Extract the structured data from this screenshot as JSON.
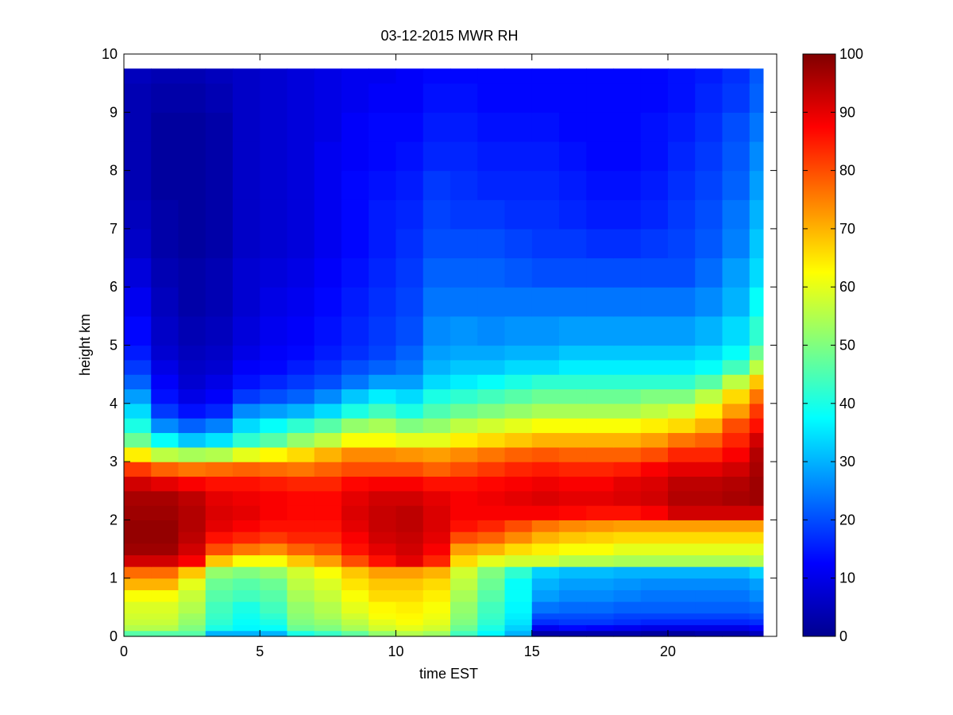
{
  "chart_data": {
    "type": "heatmap",
    "title": "03-12-2015 MWR RH",
    "xlabel": "time EST",
    "ylabel": "height km",
    "xlim": [
      0,
      24
    ],
    "ylim": [
      0,
      10
    ],
    "x_ticks": [
      0,
      5,
      10,
      15,
      20
    ],
    "y_ticks": [
      0,
      1,
      2,
      3,
      4,
      5,
      6,
      7,
      8,
      9,
      10
    ],
    "x_tick_labels": [
      "0",
      "5",
      "10",
      "15",
      "20"
    ],
    "y_tick_labels": [
      "0",
      "1",
      "2",
      "3",
      "4",
      "5",
      "6",
      "7",
      "8",
      "9",
      "10"
    ],
    "colorbar": {
      "colormap": "jet",
      "range": [
        0,
        100
      ],
      "ticks": [
        0,
        10,
        20,
        30,
        40,
        50,
        60,
        70,
        80,
        90,
        100
      ],
      "tick_labels": [
        "0",
        "10",
        "20",
        "30",
        "40",
        "50",
        "60",
        "70",
        "80",
        "90",
        "100"
      ]
    },
    "x": [
      0,
      1,
      2,
      3,
      4,
      5,
      6,
      7,
      8,
      9,
      10,
      11,
      12,
      13,
      14,
      15,
      16,
      17,
      18,
      19,
      20,
      21,
      22,
      23
    ],
    "y": [
      0,
      0.1,
      0.2,
      0.3,
      0.4,
      0.6,
      0.8,
      1.0,
      1.2,
      1.4,
      1.6,
      1.8,
      2.0,
      2.25,
      2.5,
      2.75,
      3.0,
      3.25,
      3.5,
      3.75,
      4.0,
      4.25,
      4.5,
      4.75,
      5.0,
      5.5,
      6.0,
      6.5,
      7.0,
      7.5,
      8.0,
      8.5,
      9.0,
      9.5,
      9.75
    ],
    "z": [
      [
        46,
        46,
        46,
        30,
        30,
        30,
        40,
        43,
        47,
        52,
        55,
        53,
        44,
        37,
        30,
        4,
        4,
        4,
        4,
        3,
        3,
        4,
        4,
        6
      ],
      [
        55,
        55,
        50,
        40,
        37,
        38,
        48,
        50,
        54,
        58,
        60,
        58,
        48,
        40,
        33,
        11,
        13,
        12,
        11,
        10,
        10,
        10,
        10,
        12
      ],
      [
        57,
        57,
        52,
        42,
        38,
        40,
        50,
        52,
        56,
        60,
        62,
        60,
        50,
        42,
        35,
        17,
        18,
        18,
        17,
        16,
        16,
        16,
        16,
        17
      ],
      [
        58,
        58,
        53,
        43,
        39,
        42,
        51,
        54,
        58,
        62,
        63,
        61,
        51,
        43,
        36,
        20,
        20,
        20,
        19,
        19,
        19,
        19,
        19,
        20
      ],
      [
        59,
        59,
        55,
        44,
        40,
        44,
        52,
        55,
        60,
        63,
        64,
        62,
        52,
        44,
        37,
        24,
        23,
        23,
        22,
        22,
        22,
        22,
        22,
        23
      ],
      [
        62,
        62,
        57,
        46,
        44,
        46,
        54,
        57,
        62,
        66,
        66,
        64,
        54,
        46,
        38,
        28,
        26,
        26,
        25,
        24,
        24,
        24,
        24,
        26
      ],
      [
        70,
        70,
        60,
        48,
        46,
        48,
        56,
        59,
        65,
        68,
        68,
        66,
        56,
        48,
        38,
        30,
        28,
        28,
        27,
        26,
        26,
        26,
        26,
        28
      ],
      [
        77,
        77,
        68,
        52,
        50,
        52,
        58,
        62,
        68,
        72,
        72,
        70,
        58,
        50,
        42,
        33,
        31,
        31,
        30,
        30,
        30,
        30,
        30,
        33
      ],
      [
        92,
        92,
        88,
        68,
        62,
        62,
        68,
        72,
        80,
        86,
        90,
        84,
        66,
        60,
        58,
        58,
        55,
        55,
        54,
        54,
        54,
        54,
        54,
        55
      ],
      [
        97,
        97,
        92,
        80,
        76,
        74,
        78,
        80,
        86,
        90,
        92,
        88,
        72,
        70,
        66,
        64,
        62,
        62,
        60,
        60,
        60,
        60,
        60,
        60
      ],
      [
        98,
        98,
        94,
        86,
        84,
        82,
        84,
        84,
        88,
        92,
        93,
        90,
        80,
        78,
        74,
        70,
        68,
        67,
        66,
        66,
        66,
        66,
        66,
        66
      ],
      [
        98,
        98,
        95,
        90,
        88,
        86,
        86,
        86,
        90,
        93,
        94,
        91,
        86,
        84,
        80,
        76,
        74,
        73,
        72,
        72,
        72,
        72,
        72,
        72
      ],
      [
        97,
        97,
        95,
        91,
        90,
        88,
        87,
        87,
        91,
        93,
        94,
        91,
        88,
        88,
        88,
        88,
        87,
        86,
        86,
        88,
        92,
        92,
        92,
        92
      ],
      [
        96,
        96,
        94,
        90,
        89,
        88,
        87,
        87,
        90,
        92,
        92,
        90,
        88,
        89,
        90,
        91,
        90,
        90,
        91,
        92,
        95,
        95,
        96,
        97
      ],
      [
        92,
        90,
        88,
        86,
        86,
        85,
        84,
        84,
        87,
        88,
        88,
        86,
        86,
        87,
        88,
        89,
        88,
        88,
        90,
        91,
        94,
        94,
        95,
        97
      ],
      [
        82,
        78,
        76,
        77,
        78,
        77,
        76,
        78,
        80,
        80,
        80,
        78,
        80,
        82,
        84,
        85,
        84,
        84,
        85,
        88,
        90,
        90,
        92,
        96
      ],
      [
        64,
        56,
        54,
        55,
        60,
        63,
        66,
        70,
        74,
        74,
        73,
        72,
        74,
        76,
        78,
        79,
        78,
        78,
        78,
        80,
        84,
        84,
        88,
        95
      ],
      [
        48,
        38,
        32,
        35,
        42,
        46,
        52,
        56,
        62,
        62,
        60,
        60,
        64,
        66,
        68,
        70,
        70,
        70,
        70,
        72,
        76,
        78,
        84,
        92
      ],
      [
        40,
        26,
        22,
        25,
        34,
        38,
        42,
        46,
        52,
        54,
        50,
        52,
        56,
        58,
        60,
        62,
        62,
        62,
        62,
        64,
        66,
        70,
        80,
        86
      ],
      [
        34,
        18,
        14,
        16,
        26,
        28,
        30,
        34,
        40,
        44,
        40,
        45,
        48,
        50,
        52,
        54,
        54,
        54,
        54,
        56,
        58,
        64,
        72,
        82
      ],
      [
        28,
        14,
        10,
        12,
        18,
        20,
        22,
        26,
        32,
        36,
        34,
        40,
        42,
        44,
        46,
        48,
        48,
        48,
        48,
        50,
        50,
        56,
        66,
        76
      ],
      [
        22,
        12,
        8,
        10,
        14,
        16,
        18,
        20,
        24,
        28,
        28,
        34,
        36,
        38,
        40,
        42,
        42,
        42,
        42,
        42,
        42,
        46,
        56,
        68
      ],
      [
        18,
        10,
        7,
        8,
        12,
        13,
        15,
        17,
        20,
        22,
        24,
        30,
        32,
        32,
        34,
        34,
        36,
        36,
        36,
        36,
        36,
        38,
        44,
        56
      ],
      [
        15,
        8,
        6,
        7,
        10,
        12,
        13,
        15,
        17,
        19,
        22,
        28,
        29,
        29,
        30,
        30,
        32,
        32,
        32,
        32,
        32,
        34,
        38,
        48
      ],
      [
        13,
        7,
        5,
        6,
        9,
        11,
        12,
        14,
        16,
        18,
        20,
        26,
        27,
        26,
        27,
        27,
        28,
        28,
        28,
        28,
        28,
        30,
        34,
        42
      ],
      [
        11,
        6,
        4,
        5,
        8,
        10,
        11,
        13,
        15,
        17,
        19,
        24,
        24,
        24,
        24,
        24,
        24,
        24,
        24,
        24,
        24,
        26,
        30,
        38
      ],
      [
        9,
        5,
        4,
        5,
        8,
        9,
        10,
        12,
        14,
        16,
        18,
        22,
        22,
        22,
        21,
        20,
        20,
        20,
        20,
        20,
        20,
        23,
        28,
        34
      ],
      [
        7,
        4,
        3,
        4,
        7,
        8,
        9,
        11,
        13,
        15,
        17,
        20,
        20,
        20,
        19,
        18,
        18,
        17,
        17,
        18,
        19,
        21,
        25,
        32
      ],
      [
        6,
        4,
        3,
        4,
        7,
        8,
        9,
        11,
        13,
        15,
        16,
        19,
        18,
        18,
        17,
        17,
        16,
        15,
        15,
        16,
        18,
        20,
        24,
        30
      ],
      [
        5,
        3,
        3,
        4,
        7,
        8,
        9,
        11,
        13,
        14,
        15,
        18,
        17,
        16,
        16,
        16,
        15,
        14,
        14,
        15,
        17,
        19,
        22,
        28
      ],
      [
        5,
        3,
        3,
        4,
        7,
        8,
        9,
        11,
        12,
        13,
        14,
        16,
        16,
        15,
        15,
        15,
        14,
        13,
        13,
        14,
        16,
        18,
        21,
        26
      ],
      [
        5,
        3,
        3,
        4,
        7,
        8,
        9,
        10,
        12,
        13,
        13,
        15,
        15,
        14,
        14,
        14,
        13,
        13,
        13,
        14,
        15,
        17,
        20,
        24
      ],
      [
        5,
        4,
        4,
        5,
        7,
        8,
        9,
        10,
        11,
        12,
        12,
        14,
        14,
        13,
        13,
        13,
        13,
        13,
        13,
        13,
        14,
        16,
        18,
        22
      ],
      [
        6,
        5,
        5,
        6,
        7,
        8,
        9,
        10,
        11,
        11,
        12,
        13,
        13,
        13,
        13,
        13,
        13,
        13,
        13,
        13,
        14,
        15,
        17,
        21
      ],
      [
        6,
        5,
        5,
        6,
        7,
        8,
        9,
        10,
        11,
        11,
        12,
        13,
        13,
        13,
        13,
        13,
        13,
        13,
        13,
        13,
        14,
        15,
        17,
        20
      ]
    ]
  }
}
